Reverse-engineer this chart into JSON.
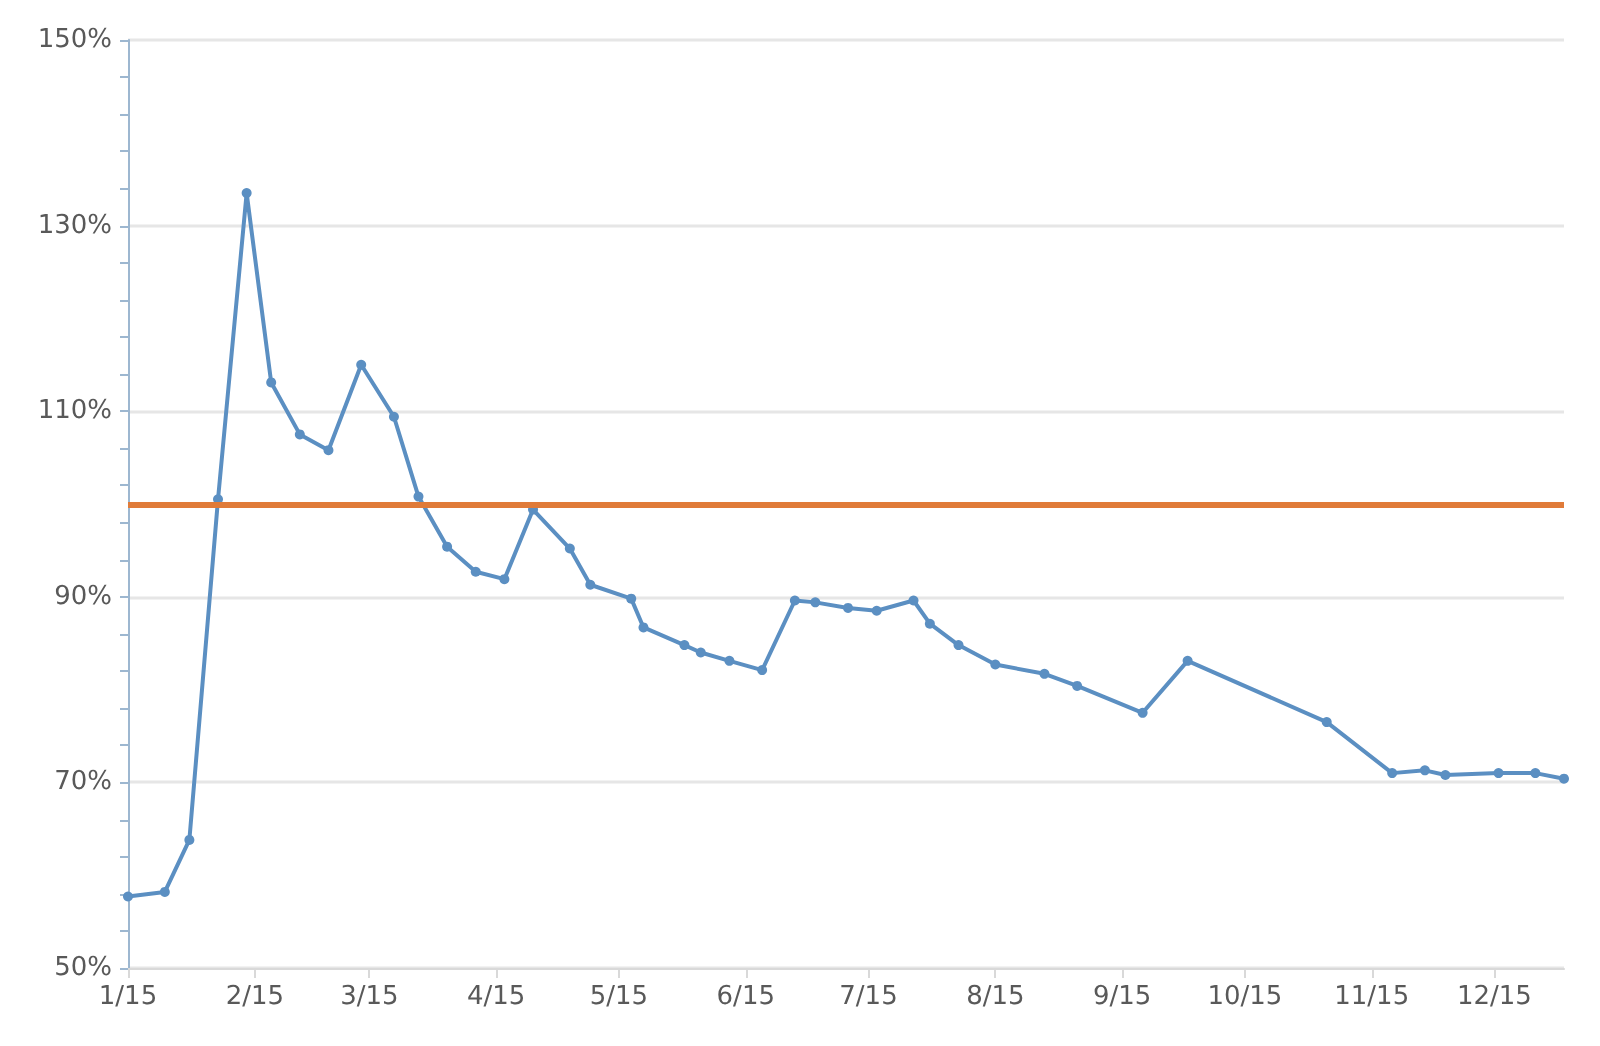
{
  "chart_data": {
    "type": "line",
    "x": [
      "2015-01-01",
      "2015-01-10",
      "2015-01-16",
      "2015-01-23",
      "2015-01-30",
      "2015-02-05",
      "2015-02-12",
      "2015-02-19",
      "2015-02-27",
      "2015-03-07",
      "2015-03-13",
      "2015-03-20",
      "2015-03-27",
      "2015-04-03",
      "2015-04-10",
      "2015-04-19",
      "2015-04-24",
      "2015-05-04",
      "2015-05-07",
      "2015-05-17",
      "2015-05-21",
      "2015-05-28",
      "2015-06-05",
      "2015-06-13",
      "2015-06-18",
      "2015-06-26",
      "2015-07-03",
      "2015-07-12",
      "2015-07-16",
      "2015-07-23",
      "2015-08-01",
      "2015-08-13",
      "2015-08-21",
      "2015-09-06",
      "2015-09-17",
      "2015-10-21",
      "2015-11-06",
      "2015-11-14",
      "2015-11-19",
      "2015-12-02",
      "2015-12-11",
      "2015-12-18"
    ],
    "series": [
      {
        "color": "#5b8fc2",
        "values": [
          57.7,
          58.2,
          63.8,
          100.5,
          133.5,
          113.1,
          107.5,
          105.8,
          115,
          109.4,
          100.8,
          95.4,
          92.7,
          91.9,
          99.4,
          95.2,
          91.3,
          89.8,
          86.7,
          84.8,
          84.0,
          83.1,
          82.1,
          89.6,
          89.4,
          88.8,
          88.5,
          89.6,
          87.1,
          84.8,
          82.7,
          81.7,
          80.4,
          77.5,
          83.1,
          76.5,
          71.0,
          71.3,
          70.8,
          71.0,
          71.0,
          70.4
        ]
      }
    ],
    "xlim": [
      "2015-01-01",
      "2015-12-18"
    ],
    "xticks": [
      {
        "value": "2015-01-01",
        "label": "1/15"
      },
      {
        "value": "2015-02-01",
        "label": "2/15"
      },
      {
        "value": "2015-03-01",
        "label": "3/15"
      },
      {
        "value": "2015-04-01",
        "label": "4/15"
      },
      {
        "value": "2015-05-01",
        "label": "5/15"
      },
      {
        "value": "2015-06-01",
        "label": "6/15"
      },
      {
        "value": "2015-07-01",
        "label": "7/15"
      },
      {
        "value": "2015-08-01",
        "label": "8/15"
      },
      {
        "value": "2015-09-01",
        "label": "9/15"
      },
      {
        "value": "2015-10-01",
        "label": "10/15"
      },
      {
        "value": "2015-11-01",
        "label": "11/15"
      },
      {
        "value": "2015-12-01",
        "label": "12/15"
      }
    ],
    "ylim": [
      50,
      150
    ],
    "yticks": [
      {
        "value": 50,
        "label": "50%"
      },
      {
        "value": 54,
        "label": null
      },
      {
        "value": 58,
        "label": null
      },
      {
        "value": 62,
        "label": null
      },
      {
        "value": 66,
        "label": null
      },
      {
        "value": 70,
        "label": "70%"
      },
      {
        "value": 74,
        "label": null
      },
      {
        "value": 78,
        "label": null
      },
      {
        "value": 82,
        "label": null
      },
      {
        "value": 86,
        "label": null
      },
      {
        "value": 90,
        "label": "90%"
      },
      {
        "value": 94,
        "label": null
      },
      {
        "value": 98,
        "label": null
      },
      {
        "value": 102,
        "label": null
      },
      {
        "value": 106,
        "label": null
      },
      {
        "value": 110,
        "label": "110%"
      },
      {
        "value": 114,
        "label": null
      },
      {
        "value": 118,
        "label": null
      },
      {
        "value": 122,
        "label": null
      },
      {
        "value": 126,
        "label": null
      },
      {
        "value": 130,
        "label": "130%"
      },
      {
        "value": 134,
        "label": null
      },
      {
        "value": 138,
        "label": null
      },
      {
        "value": 142,
        "label": null
      },
      {
        "value": 146,
        "label": null
      },
      {
        "value": 150,
        "label": "150%"
      }
    ],
    "ref_lines": [
      {
        "axis": "y",
        "value": 100,
        "label": null,
        "color": "#e07b39"
      }
    ],
    "grid": "y",
    "marker": "circle"
  }
}
